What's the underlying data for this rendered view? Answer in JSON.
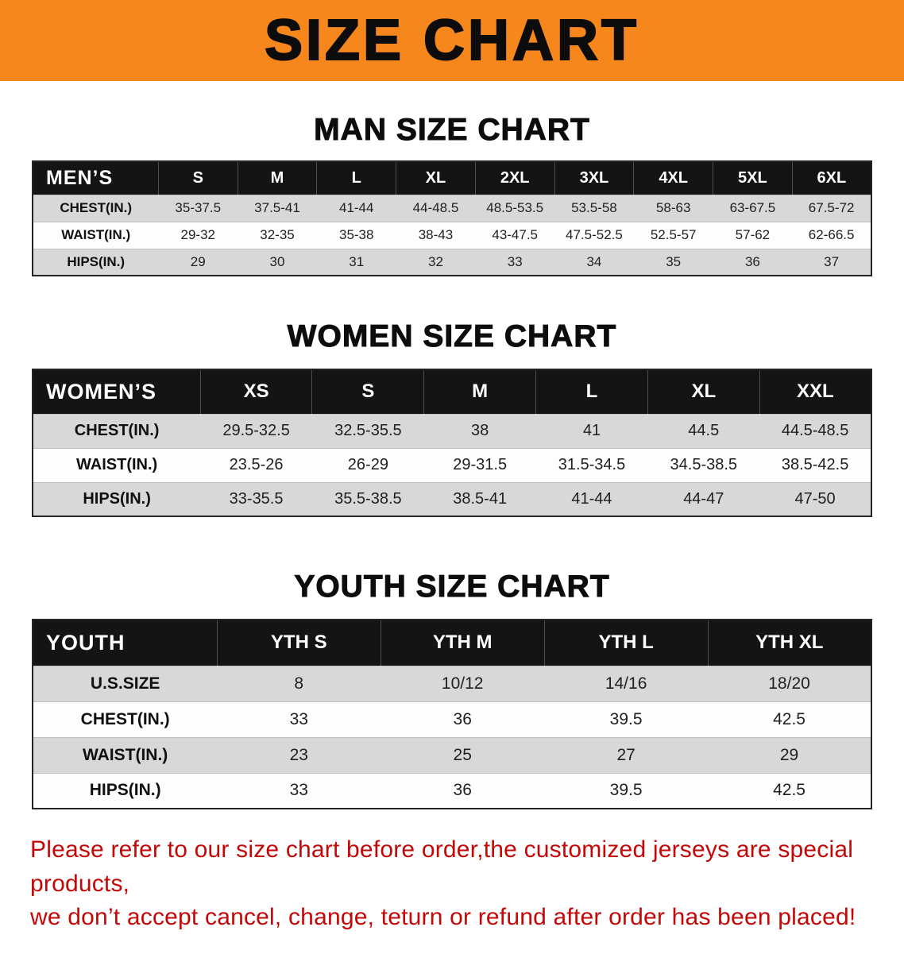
{
  "banner": {
    "title": "SIZE CHART"
  },
  "sections": [
    {
      "id": "men",
      "heading": "MAN SIZE CHART",
      "table": {
        "header": [
          "MEN’S",
          "S",
          "M",
          "L",
          "XL",
          "2XL",
          "3XL",
          "4XL",
          "5XL",
          "6XL"
        ],
        "rows": [
          [
            "CHEST(IN.)",
            "35-37.5",
            "37.5-41",
            "41-44",
            "44-48.5",
            "48.5-53.5",
            "53.5-58",
            "58-63",
            "63-67.5",
            "67.5-72"
          ],
          [
            "WAIST(IN.)",
            "29-32",
            "32-35",
            "35-38",
            "38-43",
            "43-47.5",
            "47.5-52.5",
            "52.5-57",
            "57-62",
            "62-66.5"
          ],
          [
            "HIPS(IN.)",
            "29",
            "30",
            "31",
            "32",
            "33",
            "34",
            "35",
            "36",
            "37"
          ]
        ]
      }
    },
    {
      "id": "women",
      "heading": "WOMEN SIZE CHART",
      "table": {
        "header": [
          "WOMEN’S",
          "XS",
          "S",
          "M",
          "L",
          "XL",
          "XXL"
        ],
        "rows": [
          [
            "CHEST(IN.)",
            "29.5-32.5",
            "32.5-35.5",
            "38",
            "41",
            "44.5",
            "44.5-48.5"
          ],
          [
            "WAIST(IN.)",
            "23.5-26",
            "26-29",
            "29-31.5",
            "31.5-34.5",
            "34.5-38.5",
            "38.5-42.5"
          ],
          [
            "HIPS(IN.)",
            "33-35.5",
            "35.5-38.5",
            "38.5-41",
            "41-44",
            "44-47",
            "47-50"
          ]
        ]
      }
    },
    {
      "id": "youth",
      "heading": "YOUTH SIZE CHART",
      "table": {
        "header": [
          "YOUTH",
          "YTH S",
          "YTH M",
          "YTH L",
          "YTH XL"
        ],
        "rows": [
          [
            "U.S.SIZE",
            "8",
            "10/12",
            "14/16",
            "18/20"
          ],
          [
            "CHEST(IN.)",
            "33",
            "36",
            "39.5",
            "42.5"
          ],
          [
            "WAIST(IN.)",
            "23",
            "25",
            "27",
            "29"
          ],
          [
            "HIPS(IN.)",
            "33",
            "36",
            "39.5",
            "42.5"
          ]
        ]
      }
    }
  ],
  "footer": {
    "lines": [
      "Please refer to our size chart before order,the customized jerseys are special products,",
      "we don’t accept cancel, change, teturn or refund after order has been placed!"
    ]
  },
  "colors": {
    "banner_bg": "#F6871D",
    "header_bg": "#141414",
    "row_shaded": "#d8d8d8",
    "footer_text": "#c40808"
  }
}
